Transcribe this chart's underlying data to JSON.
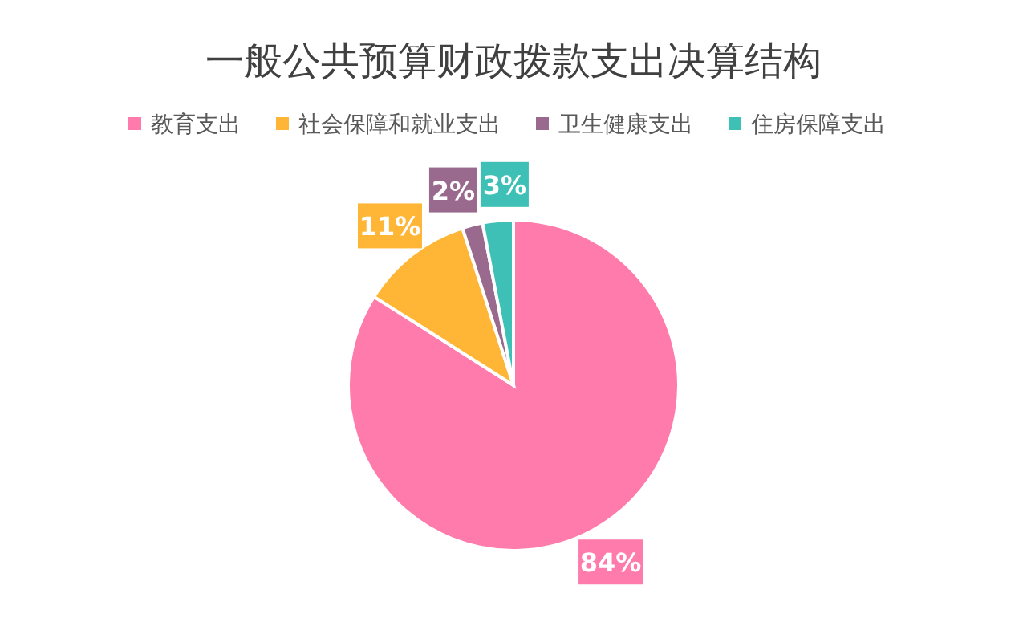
{
  "chart_data": {
    "type": "pie",
    "title": "一般公共预算财政拨款支出决算结构",
    "categories": [
      "教育支出",
      "社会保障和就业支出",
      "卫生健康支出",
      "住房保障支出"
    ],
    "values": [
      84,
      11,
      2,
      3
    ],
    "value_labels": [
      "84%",
      "11%",
      "2%",
      "3%"
    ],
    "colors": [
      "#ff7bac",
      "#ffb637",
      "#9a6a8e",
      "#3fc0b6"
    ],
    "legend": "top"
  }
}
